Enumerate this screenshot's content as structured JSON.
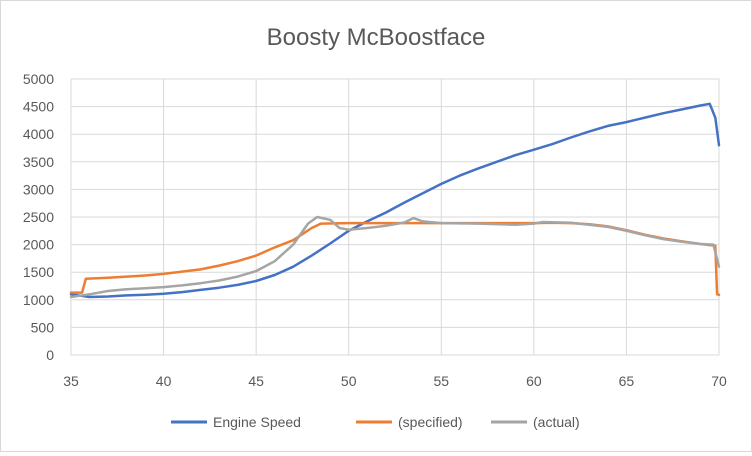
{
  "chart_data": {
    "type": "line",
    "title": "Boosty McBoostface",
    "xlabel": "",
    "ylabel": "",
    "xlim": [
      35,
      70
    ],
    "ylim": [
      0,
      5000
    ],
    "x_ticks": [
      35,
      40,
      45,
      50,
      55,
      60,
      65,
      70
    ],
    "y_ticks": [
      0,
      500,
      1000,
      1500,
      2000,
      2500,
      3000,
      3500,
      4000,
      4500,
      5000
    ],
    "grid": "both",
    "legend_position": "bottom",
    "series": [
      {
        "name": "Engine Speed",
        "color": "#4472C4",
        "points": [
          [
            35,
            1100
          ],
          [
            36,
            1050
          ],
          [
            37,
            1060
          ],
          [
            38,
            1080
          ],
          [
            39,
            1090
          ],
          [
            40,
            1110
          ],
          [
            41,
            1140
          ],
          [
            42,
            1180
          ],
          [
            43,
            1220
          ],
          [
            44,
            1270
          ],
          [
            45,
            1340
          ],
          [
            46,
            1450
          ],
          [
            47,
            1600
          ],
          [
            48,
            1800
          ],
          [
            49,
            2020
          ],
          [
            50,
            2250
          ],
          [
            51,
            2420
          ],
          [
            52,
            2580
          ],
          [
            53,
            2760
          ],
          [
            54,
            2930
          ],
          [
            55,
            3100
          ],
          [
            56,
            3250
          ],
          [
            57,
            3380
          ],
          [
            58,
            3500
          ],
          [
            59,
            3620
          ],
          [
            60,
            3720
          ],
          [
            61,
            3820
          ],
          [
            62,
            3940
          ],
          [
            63,
            4050
          ],
          [
            64,
            4150
          ],
          [
            65,
            4220
          ],
          [
            66,
            4300
          ],
          [
            67,
            4380
          ],
          [
            68,
            4450
          ],
          [
            69,
            4520
          ],
          [
            69.5,
            4550
          ],
          [
            69.8,
            4300
          ],
          [
            70,
            3800
          ]
        ]
      },
      {
        "name": "(specified)",
        "color": "#ED7D31",
        "points": [
          [
            35,
            1130
          ],
          [
            35.6,
            1130
          ],
          [
            35.8,
            1380
          ],
          [
            37,
            1400
          ],
          [
            38,
            1420
          ],
          [
            39,
            1440
          ],
          [
            40,
            1470
          ],
          [
            41,
            1510
          ],
          [
            42,
            1550
          ],
          [
            43,
            1620
          ],
          [
            44,
            1700
          ],
          [
            45,
            1800
          ],
          [
            46,
            1950
          ],
          [
            47,
            2080
          ],
          [
            48,
            2300
          ],
          [
            48.5,
            2380
          ],
          [
            50,
            2390
          ],
          [
            55,
            2390
          ],
          [
            60,
            2390
          ],
          [
            61,
            2395
          ],
          [
            62,
            2390
          ],
          [
            63,
            2370
          ],
          [
            64,
            2330
          ],
          [
            65,
            2260
          ],
          [
            66,
            2180
          ],
          [
            67,
            2110
          ],
          [
            68,
            2060
          ],
          [
            69,
            2010
          ],
          [
            69.8,
            1980
          ],
          [
            69.9,
            1100
          ],
          [
            70,
            1090
          ]
        ]
      },
      {
        "name": "(actual)",
        "color": "#A5A5A5",
        "points": [
          [
            35,
            1050
          ],
          [
            36,
            1100
          ],
          [
            37,
            1160
          ],
          [
            38,
            1190
          ],
          [
            39,
            1210
          ],
          [
            40,
            1230
          ],
          [
            41,
            1260
          ],
          [
            42,
            1300
          ],
          [
            43,
            1350
          ],
          [
            44,
            1420
          ],
          [
            45,
            1520
          ],
          [
            46,
            1700
          ],
          [
            47,
            2000
          ],
          [
            47.8,
            2380
          ],
          [
            48.3,
            2500
          ],
          [
            49,
            2450
          ],
          [
            49.5,
            2300
          ],
          [
            50,
            2270
          ],
          [
            51,
            2300
          ],
          [
            52,
            2340
          ],
          [
            53,
            2400
          ],
          [
            53.5,
            2480
          ],
          [
            54,
            2420
          ],
          [
            55,
            2390
          ],
          [
            57,
            2380
          ],
          [
            59,
            2360
          ],
          [
            60,
            2380
          ],
          [
            60.5,
            2410
          ],
          [
            62,
            2395
          ],
          [
            63,
            2360
          ],
          [
            64,
            2320
          ],
          [
            65,
            2250
          ],
          [
            66,
            2170
          ],
          [
            67,
            2100
          ],
          [
            68,
            2050
          ],
          [
            69,
            2010
          ],
          [
            69.7,
            2000
          ],
          [
            70,
            1600
          ]
        ]
      }
    ]
  }
}
